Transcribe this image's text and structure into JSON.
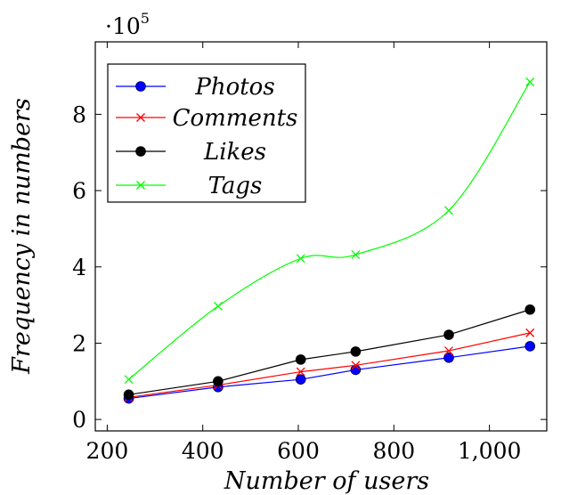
{
  "chart_data": {
    "type": "line",
    "title": "",
    "xlabel": "Number of users",
    "ylabel": "Frequency in numbers",
    "y_scale_label": {
      "base": "·10",
      "exponent": "5"
    },
    "xlim": [
      175,
      1120
    ],
    "ylim": [
      -0.3,
      9.9
    ],
    "x_ticks": [
      200,
      400,
      600,
      800,
      1000
    ],
    "x_tick_labels": [
      "200",
      "400",
      "600",
      "800",
      "1,000"
    ],
    "y_ticks": [
      0,
      2,
      4,
      6,
      8
    ],
    "y_tick_labels": [
      "0",
      "2",
      "4",
      "6",
      "8"
    ],
    "grid": false,
    "legend_position": "top-left",
    "x": [
      245,
      432,
      605,
      720,
      915,
      1085
    ],
    "series": [
      {
        "name": "Photos",
        "values": [
          0.55,
          0.85,
          1.05,
          1.3,
          1.62,
          1.92
        ],
        "color": "#0000ff",
        "marker": "circle",
        "smooth": false
      },
      {
        "name": "Comments",
        "values": [
          0.58,
          0.9,
          1.25,
          1.42,
          1.8,
          2.27
        ],
        "color": "#ff0000",
        "marker": "x",
        "smooth": false
      },
      {
        "name": "Likes",
        "values": [
          0.65,
          1.0,
          1.57,
          1.78,
          2.22,
          2.88
        ],
        "color": "#000000",
        "marker": "circle",
        "smooth": false
      },
      {
        "name": "Tags",
        "values": [
          1.05,
          2.97,
          4.22,
          4.32,
          5.48,
          8.85
        ],
        "color": "#00ff00",
        "marker": "x",
        "smooth": true
      }
    ]
  }
}
